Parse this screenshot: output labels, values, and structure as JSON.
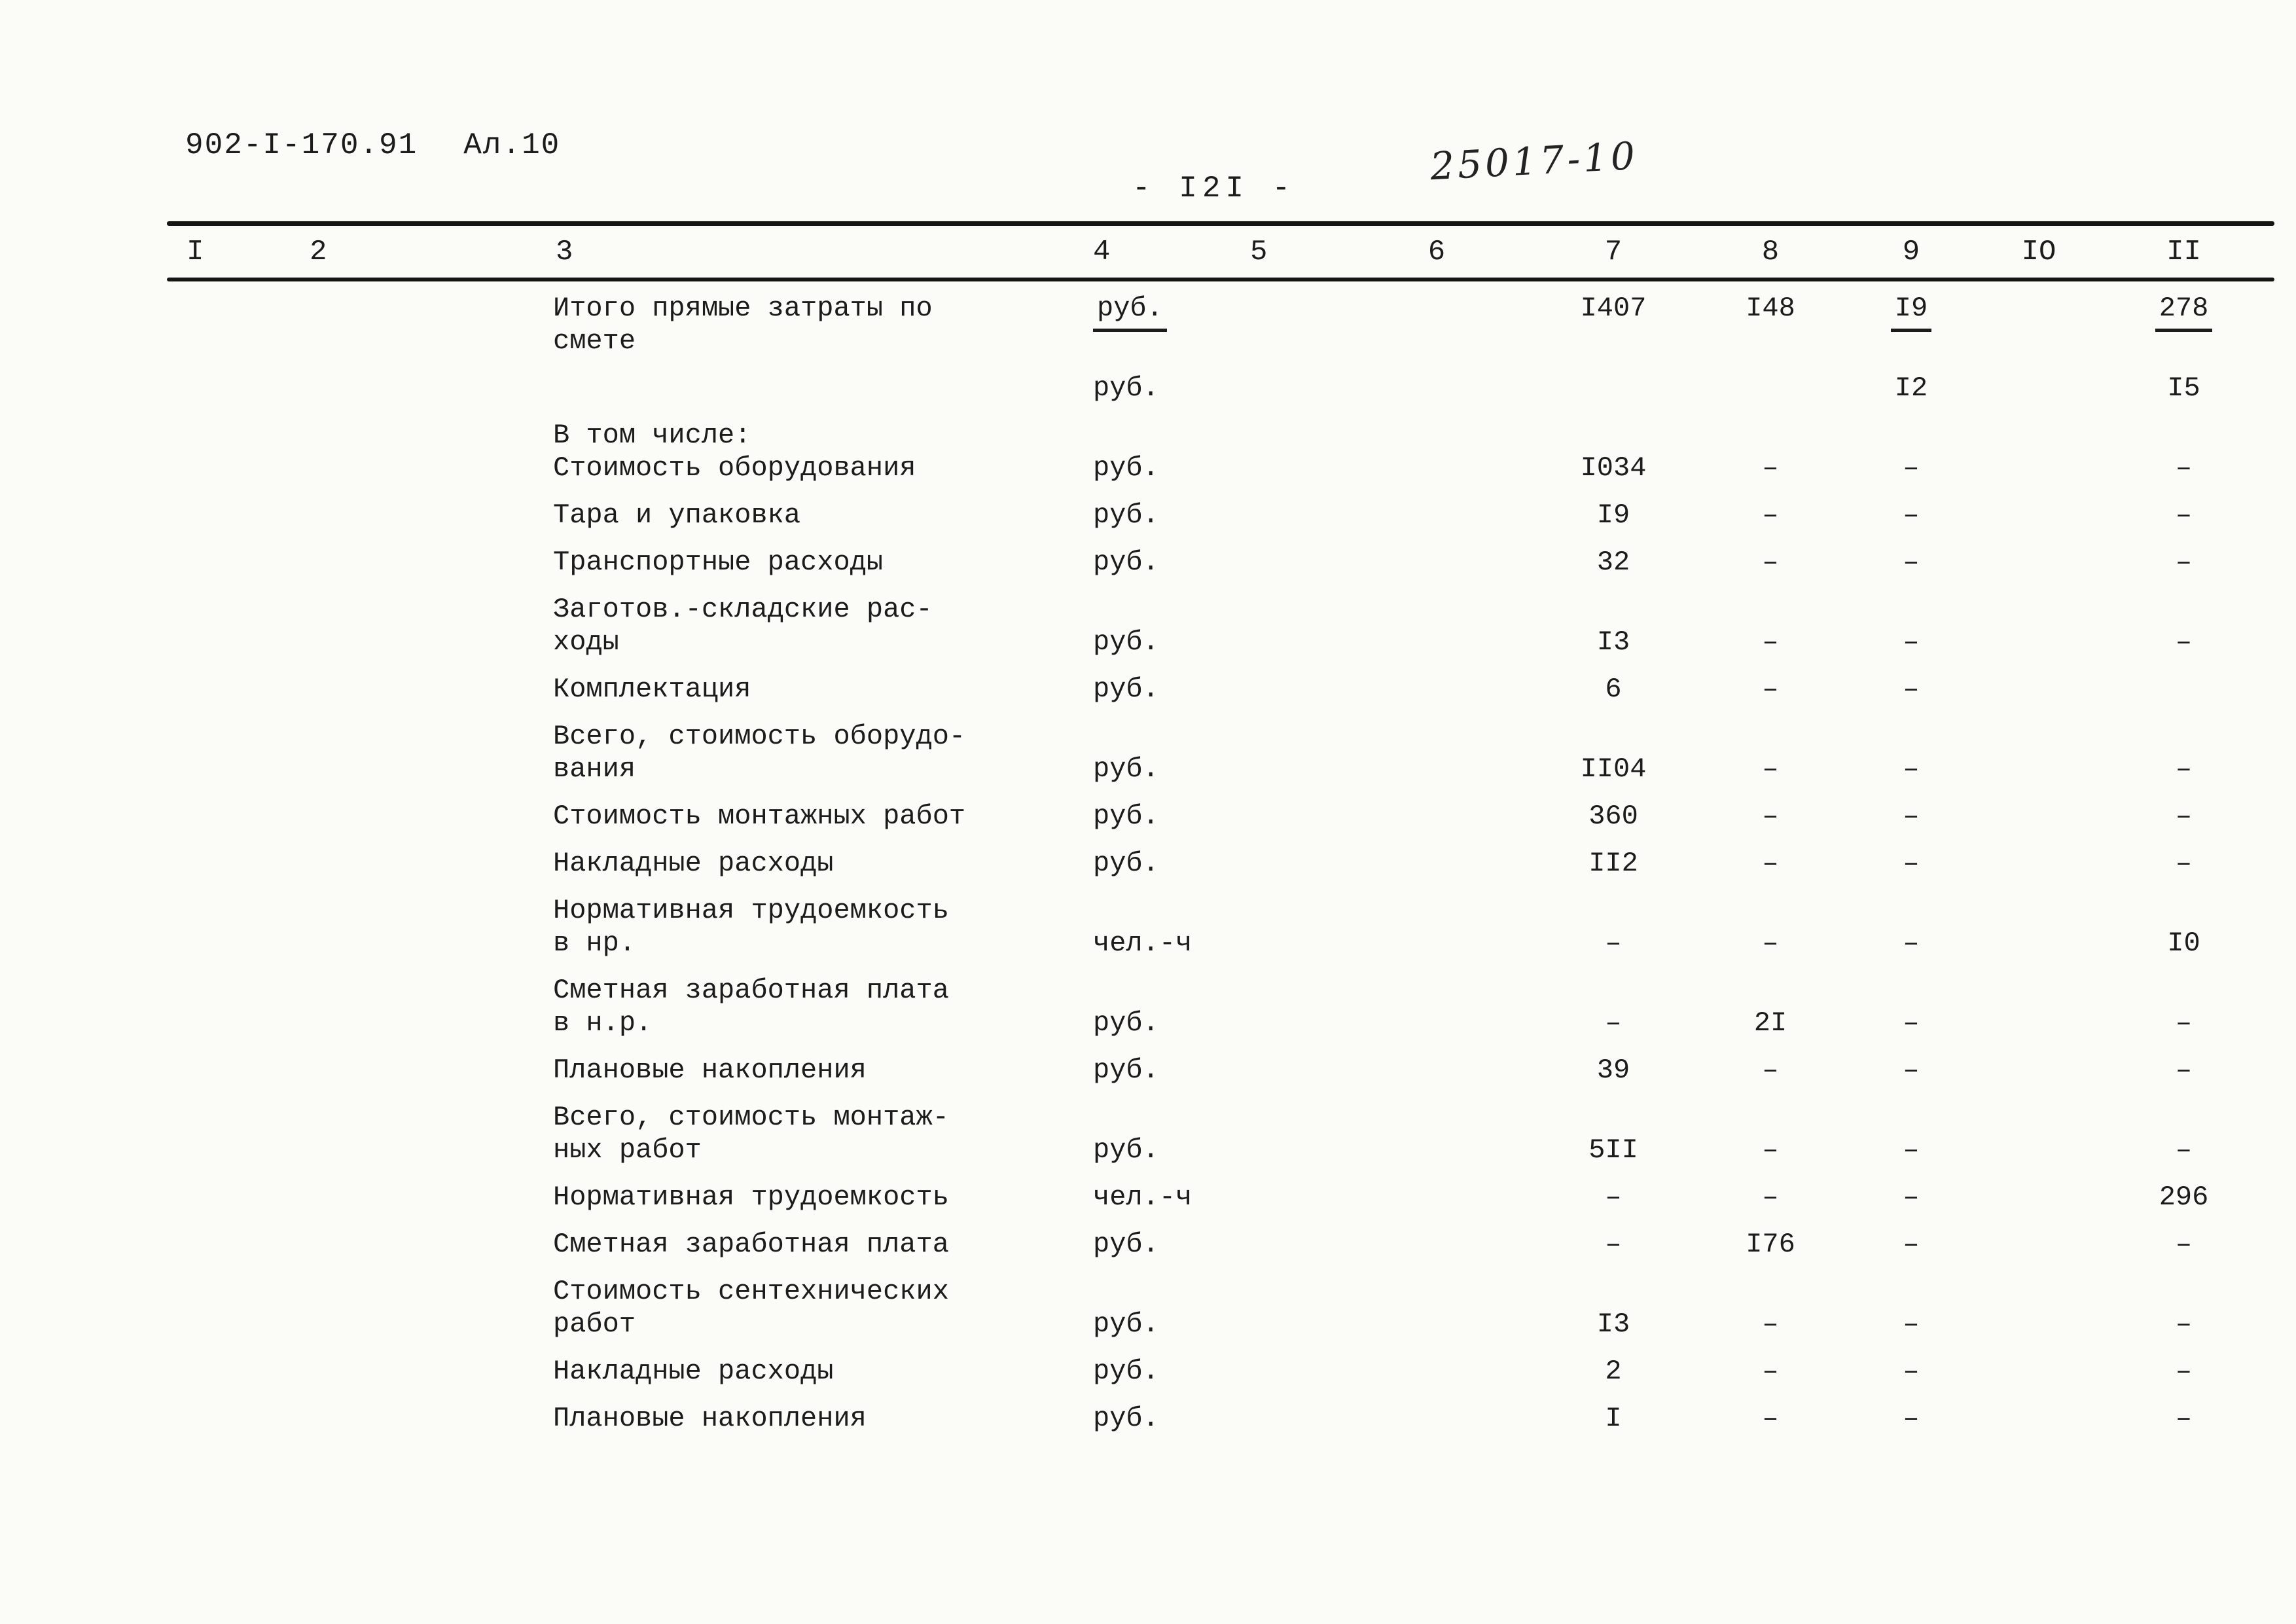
{
  "page": {
    "doc_number": "902-I-170.91",
    "sheet_number": "Ал.10",
    "page_number": "- I2I -",
    "handwritten_mark": "25017-10"
  },
  "table": {
    "columns": [
      "I",
      "2",
      "3",
      "4",
      "5",
      "6",
      "7",
      "8",
      "9",
      "IO",
      "II"
    ],
    "rows": [
      {
        "label": [
          "Итого прямые затраты по",
          "смете"
        ],
        "unit": "руб.",
        "unit_ul": true,
        "v7": "I407",
        "v8": "I48",
        "v9": "I9",
        "v9_ul": true,
        "v11": "278",
        "v11_ul": true,
        "valign": "top"
      },
      {
        "label": [],
        "unit": "руб.",
        "v9": "I2",
        "v11": "I5",
        "valign": "top"
      },
      {
        "label": [
          "В том числе:",
          "Стоимость оборудования"
        ],
        "unit": "руб.",
        "v7": "I034",
        "v8": "–",
        "v9": "–",
        "v11": "–"
      },
      {
        "label": [
          "Тара и упаковка"
        ],
        "unit": "руб.",
        "v7": "I9",
        "v8": "–",
        "v9": "–",
        "v11": "–"
      },
      {
        "label": [
          "Транспортные расходы"
        ],
        "unit": "руб.",
        "v7": "32",
        "v8": "–",
        "v9": "–",
        "v11": "–"
      },
      {
        "label": [
          "Заготов.-складские рас-",
          "ходы"
        ],
        "unit": "руб.",
        "v7": "I3",
        "v8": "–",
        "v9": "–",
        "v11": "–"
      },
      {
        "label": [
          "Комплектация"
        ],
        "unit": "руб.",
        "v7": "6",
        "v8": "–",
        "v9": "–",
        "v11": ""
      },
      {
        "label": [
          "Всего, стоимость оборудо-",
          "вания"
        ],
        "unit": "руб.",
        "v7": "II04",
        "v8": "–",
        "v9": "–",
        "v11": "–"
      },
      {
        "label": [
          "Стоимость монтажных работ"
        ],
        "unit": "руб.",
        "v7": "360",
        "v8": "–",
        "v9": "–",
        "v11": "–"
      },
      {
        "label": [
          "Накладные расходы"
        ],
        "unit": "руб.",
        "v7": "II2",
        "v8": "–",
        "v9": "–",
        "v11": "–"
      },
      {
        "label": [
          "Нормативная трудоемкость",
          "в нр."
        ],
        "unit": "чел.-ч",
        "v7": "–",
        "v8": "–",
        "v9": "–",
        "v11": "I0"
      },
      {
        "label": [
          "Сметная заработная плата",
          "в н.р."
        ],
        "unit": "руб.",
        "v7": "–",
        "v8": "2I",
        "v9": "–",
        "v11": "–"
      },
      {
        "label": [
          "Плановые накопления"
        ],
        "unit": "руб.",
        "v7": "39",
        "v8": "–",
        "v9": "–",
        "v11": "–"
      },
      {
        "label": [
          "Всего, стоимость монтаж-",
          "ных работ"
        ],
        "unit": "руб.",
        "v7": "5II",
        "v8": "–",
        "v9": "–",
        "v11": "–"
      },
      {
        "label": [
          "Нормативная трудоемкость"
        ],
        "unit": "чел.-ч",
        "v7": "–",
        "v8": "–",
        "v9": "–",
        "v11": "296"
      },
      {
        "label": [
          "Сметная заработная плата"
        ],
        "unit": "руб.",
        "v7": "–",
        "v8": "I76",
        "v9": "–",
        "v11": "–"
      },
      {
        "label": [
          "Стоимость сентехнических",
          "работ"
        ],
        "unit": "руб.",
        "v7": "I3",
        "v8": "–",
        "v9": "–",
        "v11": "–"
      },
      {
        "label": [
          "Накладные расходы"
        ],
        "unit": "руб.",
        "v7": "2",
        "v8": "–",
        "v9": "–",
        "v11": "–"
      },
      {
        "label": [
          "Плановые накопления"
        ],
        "unit": "руб.",
        "v7": "I",
        "v8": "–",
        "v9": "–",
        "v11": "–"
      }
    ]
  }
}
